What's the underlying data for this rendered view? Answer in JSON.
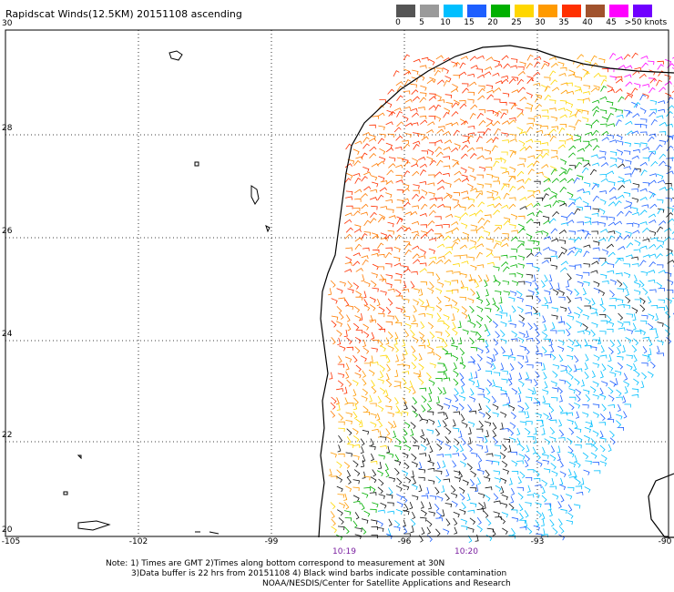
{
  "title": "Rapidscat Winds(12.5KM) 20151108 ascending",
  "legend": {
    "ticks": [
      "0",
      "5",
      "10",
      "15",
      "20",
      "25",
      "30",
      "35",
      "40",
      "45",
      ">50 knots"
    ],
    "colors": [
      "#555555",
      "#9a9a9a",
      "#00bfff",
      "#1e5fff",
      "#00b000",
      "#ffd700",
      "#ff9a00",
      "#ff3000",
      "#a0522d",
      "#ff00ff",
      "#7000ff"
    ]
  },
  "axes": {
    "x_ticks": [
      "-105",
      "-102",
      "-99",
      "-96",
      "-93",
      "-90"
    ],
    "y_ticks": [
      "30",
      "28",
      "26",
      "24",
      "22",
      "20"
    ]
  },
  "times": [
    "10:19",
    "10:20"
  ],
  "notes": [
    "Note: 1) Times are GMT 2)Times along bottom correspond to measurement at 30N",
    "3)Data buffer is 22 hrs from 20151108 4) Black wind barbs indicate possible contamination",
    "NOAA/NESDIS/Center for Satellite Applications and Research"
  ]
}
